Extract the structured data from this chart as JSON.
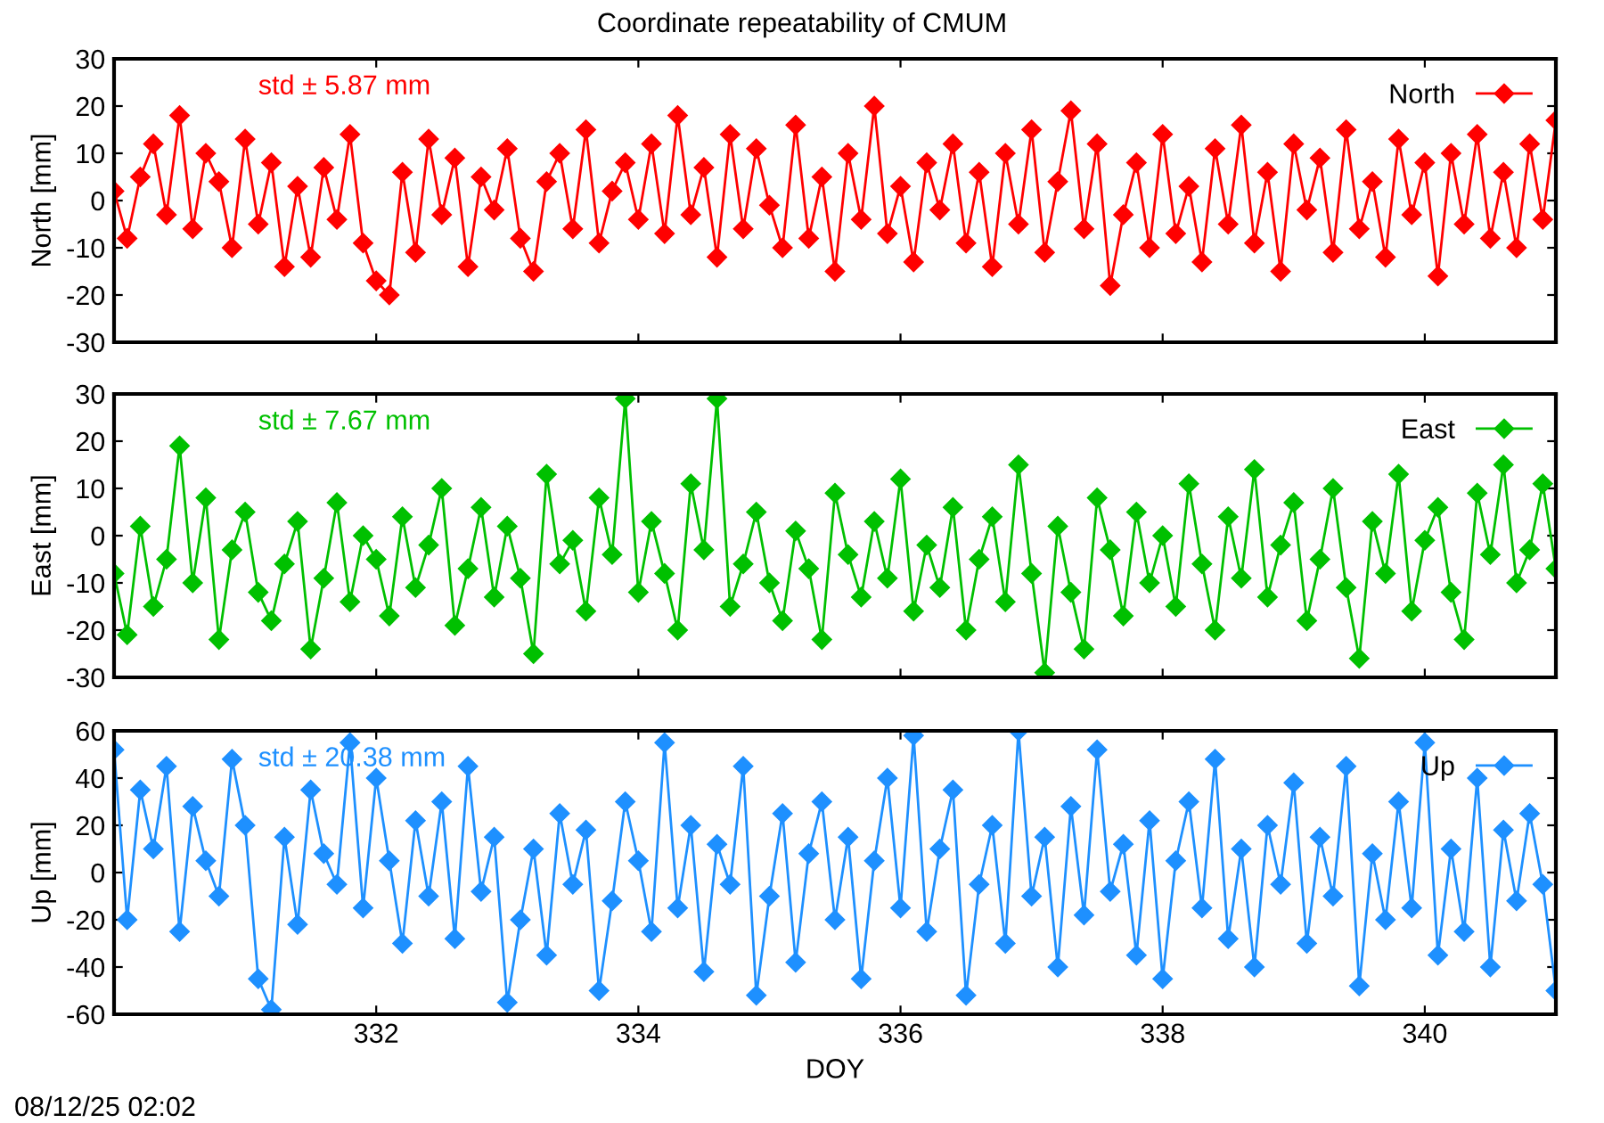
{
  "chart_data": [
    {
      "type": "line",
      "title": "Coordinate repeatability of CMUM",
      "ylabel": "North [mm]",
      "annotations": [
        "std ± 5.87 mm"
      ],
      "tick_labels": "y",
      "legend": "top right",
      "marker": "diamond",
      "line_style": "solid",
      "grid": false,
      "xlim": [
        330,
        341
      ],
      "xticks": [
        332,
        334,
        336,
        338,
        340
      ],
      "ylim": [
        -30,
        30
      ],
      "yticks": [
        -30,
        -20,
        -10,
        0,
        10,
        20,
        30
      ],
      "x": [
        330,
        330.1,
        330.2,
        330.3,
        330.4,
        330.5,
        330.6,
        330.7,
        330.8,
        330.9,
        331,
        331.1,
        331.2,
        331.3,
        331.4,
        331.5,
        331.6,
        331.7,
        331.8,
        331.9,
        332,
        332.1,
        332.2,
        332.3,
        332.4,
        332.5,
        332.6,
        332.7,
        332.8,
        332.9,
        333,
        333.1,
        333.2,
        333.3,
        333.4,
        333.5,
        333.6,
        333.7,
        333.8,
        333.9,
        334,
        334.1,
        334.2,
        334.3,
        334.4,
        334.5,
        334.6,
        334.7,
        334.8,
        334.9,
        335,
        335.1,
        335.2,
        335.3,
        335.4,
        335.5,
        335.6,
        335.7,
        335.8,
        335.9,
        336,
        336.1,
        336.2,
        336.3,
        336.4,
        336.5,
        336.6,
        336.7,
        336.8,
        336.9,
        337,
        337.1,
        337.2,
        337.3,
        337.4,
        337.5,
        337.6,
        337.7,
        337.8,
        337.9,
        338,
        338.1,
        338.2,
        338.3,
        338.4,
        338.5,
        338.6,
        338.7,
        338.8,
        338.9,
        339,
        339.1,
        339.2,
        339.3,
        339.4,
        339.5,
        339.6,
        339.7,
        339.8,
        339.9,
        340,
        340.1,
        340.2,
        340.3,
        340.4,
        340.5,
        340.6,
        340.7,
        340.8,
        340.9,
        341
      ],
      "series": [
        {
          "name": "North",
          "color": "#ff0000",
          "values": [
            2,
            -8,
            5,
            12,
            -3,
            18,
            -6,
            10,
            4,
            -10,
            13,
            -5,
            8,
            -14,
            3,
            -12,
            7,
            -4,
            14,
            -9,
            -17,
            -20,
            6,
            -11,
            13,
            -3,
            9,
            -14,
            5,
            -2,
            11,
            -8,
            -15,
            4,
            10,
            -6,
            15,
            -9,
            2,
            8,
            -4,
            12,
            -7,
            18,
            -3,
            7,
            -12,
            14,
            -6,
            11,
            -1,
            -10,
            16,
            -8,
            5,
            -15,
            10,
            -4,
            20,
            -7,
            3,
            -13,
            8,
            -2,
            12,
            -9,
            6,
            -14,
            10,
            -5,
            15,
            -11,
            4,
            19,
            -6,
            12,
            -18,
            -3,
            8,
            -10,
            14,
            -7,
            3,
            -13,
            11,
            -5,
            16,
            -9,
            6,
            -15,
            12,
            -2,
            9,
            -11,
            15,
            -6,
            4,
            -12,
            13,
            -3,
            8,
            -16,
            10,
            -5,
            14,
            -8,
            6,
            -10,
            12,
            -4,
            17
          ]
        }
      ]
    },
    {
      "type": "line",
      "ylabel": "East [mm]",
      "annotations": [
        "std ± 7.67 mm"
      ],
      "tick_labels": "y",
      "legend": "top right",
      "marker": "diamond",
      "line_style": "solid",
      "grid": false,
      "xlim": [
        330,
        341
      ],
      "xticks": [
        332,
        334,
        336,
        338,
        340
      ],
      "ylim": [
        -30,
        30
      ],
      "yticks": [
        -30,
        -20,
        -10,
        0,
        10,
        20,
        30
      ],
      "x": [
        330,
        330.1,
        330.2,
        330.3,
        330.4,
        330.5,
        330.6,
        330.7,
        330.8,
        330.9,
        331,
        331.1,
        331.2,
        331.3,
        331.4,
        331.5,
        331.6,
        331.7,
        331.8,
        331.9,
        332,
        332.1,
        332.2,
        332.3,
        332.4,
        332.5,
        332.6,
        332.7,
        332.8,
        332.9,
        333,
        333.1,
        333.2,
        333.3,
        333.4,
        333.5,
        333.6,
        333.7,
        333.8,
        333.9,
        334,
        334.1,
        334.2,
        334.3,
        334.4,
        334.5,
        334.6,
        334.7,
        334.8,
        334.9,
        335,
        335.1,
        335.2,
        335.3,
        335.4,
        335.5,
        335.6,
        335.7,
        335.8,
        335.9,
        336,
        336.1,
        336.2,
        336.3,
        336.4,
        336.5,
        336.6,
        336.7,
        336.8,
        336.9,
        337,
        337.1,
        337.2,
        337.3,
        337.4,
        337.5,
        337.6,
        337.7,
        337.8,
        337.9,
        338,
        338.1,
        338.2,
        338.3,
        338.4,
        338.5,
        338.6,
        338.7,
        338.8,
        338.9,
        339,
        339.1,
        339.2,
        339.3,
        339.4,
        339.5,
        339.6,
        339.7,
        339.8,
        339.9,
        340,
        340.1,
        340.2,
        340.3,
        340.4,
        340.5,
        340.6,
        340.7,
        340.8,
        340.9,
        341
      ],
      "series": [
        {
          "name": "East",
          "color": "#00c000",
          "values": [
            -8,
            -21,
            2,
            -15,
            -5,
            19,
            -10,
            8,
            -22,
            -3,
            5,
            -12,
            -18,
            -6,
            3,
            -24,
            -9,
            7,
            -14,
            0,
            -5,
            -17,
            4,
            -11,
            -2,
            10,
            -19,
            -7,
            6,
            -13,
            2,
            -9,
            -25,
            13,
            -6,
            -1,
            -16,
            8,
            -4,
            29,
            -12,
            3,
            -8,
            -20,
            11,
            -3,
            29,
            -15,
            -6,
            5,
            -10,
            -18,
            1,
            -7,
            -22,
            9,
            -4,
            -13,
            3,
            -9,
            12,
            -16,
            -2,
            -11,
            6,
            -20,
            -5,
            4,
            -14,
            15,
            -8,
            -29,
            2,
            -12,
            -24,
            8,
            -3,
            -17,
            5,
            -10,
            0,
            -15,
            11,
            -6,
            -20,
            4,
            -9,
            14,
            -13,
            -2,
            7,
            -18,
            -5,
            10,
            -11,
            -26,
            3,
            -8,
            13,
            -16,
            -1,
            6,
            -12,
            -22,
            9,
            -4,
            15,
            -10,
            -3,
            11,
            -7
          ]
        }
      ]
    },
    {
      "type": "line",
      "ylabel": "Up [mm]",
      "xlabel": "DOY",
      "annotations": [
        "std ± 20.38 mm",
        "08/12/25 02:02"
      ],
      "legend": "top right",
      "marker": "diamond",
      "line_style": "solid",
      "grid": false,
      "xlim": [
        330,
        341
      ],
      "xticks": [
        332,
        334,
        336,
        338,
        340
      ],
      "ylim": [
        -60,
        60
      ],
      "yticks": [
        -60,
        -40,
        -20,
        0,
        20,
        40,
        60
      ],
      "x": [
        330,
        330.1,
        330.2,
        330.3,
        330.4,
        330.5,
        330.6,
        330.7,
        330.8,
        330.9,
        331,
        331.1,
        331.2,
        331.3,
        331.4,
        331.5,
        331.6,
        331.7,
        331.8,
        331.9,
        332,
        332.1,
        332.2,
        332.3,
        332.4,
        332.5,
        332.6,
        332.7,
        332.8,
        332.9,
        333,
        333.1,
        333.2,
        333.3,
        333.4,
        333.5,
        333.6,
        333.7,
        333.8,
        333.9,
        334,
        334.1,
        334.2,
        334.3,
        334.4,
        334.5,
        334.6,
        334.7,
        334.8,
        334.9,
        335,
        335.1,
        335.2,
        335.3,
        335.4,
        335.5,
        335.6,
        335.7,
        335.8,
        335.9,
        336,
        336.1,
        336.2,
        336.3,
        336.4,
        336.5,
        336.6,
        336.7,
        336.8,
        336.9,
        337,
        337.1,
        337.2,
        337.3,
        337.4,
        337.5,
        337.6,
        337.7,
        337.8,
        337.9,
        338,
        338.1,
        338.2,
        338.3,
        338.4,
        338.5,
        338.6,
        338.7,
        338.8,
        338.9,
        339,
        339.1,
        339.2,
        339.3,
        339.4,
        339.5,
        339.6,
        339.7,
        339.8,
        339.9,
        340,
        340.1,
        340.2,
        340.3,
        340.4,
        340.5,
        340.6,
        340.7,
        340.8,
        340.9,
        341
      ],
      "series": [
        {
          "name": "Up",
          "color": "#1e90ff",
          "values": [
            52,
            -20,
            35,
            10,
            45,
            -25,
            28,
            5,
            -10,
            48,
            20,
            -45,
            -58,
            15,
            -22,
            35,
            8,
            -5,
            55,
            -15,
            40,
            5,
            -30,
            22,
            -10,
            30,
            -28,
            45,
            -8,
            15,
            -55,
            -20,
            10,
            -35,
            25,
            -5,
            18,
            -50,
            -12,
            30,
            5,
            -25,
            55,
            -15,
            20,
            -42,
            12,
            -5,
            45,
            -52,
            -10,
            25,
            -38,
            8,
            30,
            -20,
            15,
            -45,
            5,
            40,
            -15,
            58,
            -25,
            10,
            35,
            -52,
            -5,
            20,
            -30,
            60,
            -10,
            15,
            -40,
            28,
            -18,
            52,
            -8,
            12,
            -35,
            22,
            -45,
            5,
            30,
            -15,
            48,
            -28,
            10,
            -40,
            20,
            -5,
            38,
            -30,
            15,
            -10,
            45,
            -48,
            8,
            -20,
            30,
            -15,
            55,
            -35,
            10,
            -25,
            40,
            -40,
            18,
            -12,
            25,
            -5,
            -50
          ]
        }
      ]
    }
  ]
}
